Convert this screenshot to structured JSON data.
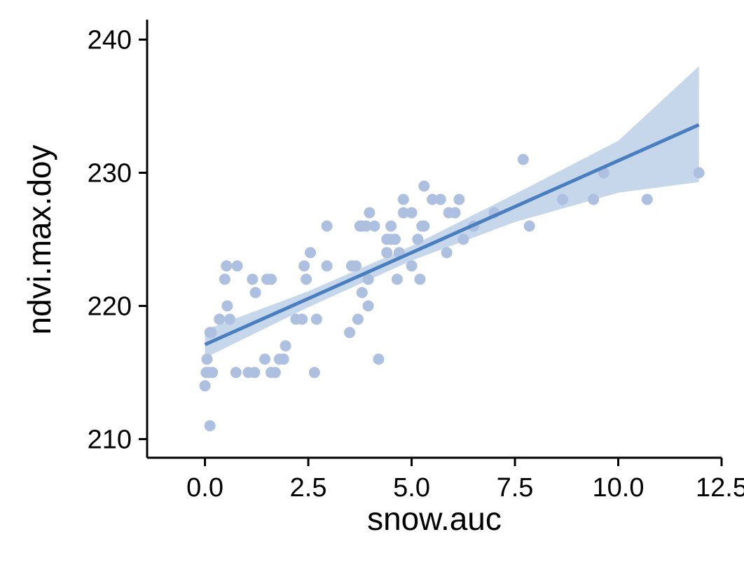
{
  "chart_data": {
    "type": "scatter",
    "title": "",
    "xlabel": "snow.auc",
    "ylabel": "ndvi.max.doy",
    "xlim": [
      -1.4,
      12.5
    ],
    "ylim": [
      208.6,
      241.5
    ],
    "x_ticks": [
      0,
      2.5,
      5,
      7.5,
      10,
      12.5
    ],
    "x_tick_labels": [
      "0.0",
      "2.5",
      "5.0",
      "7.5",
      "10.0",
      "12.5"
    ],
    "y_ticks": [
      210,
      220,
      230,
      240
    ],
    "y_tick_labels": [
      "210",
      "220",
      "230",
      "240"
    ],
    "grid": false,
    "legend": "none",
    "points": [
      {
        "x": 0.0,
        "y": 214
      },
      {
        "x": 0.03,
        "y": 215
      },
      {
        "x": 0.05,
        "y": 216
      },
      {
        "x": 0.1,
        "y": 215
      },
      {
        "x": 0.12,
        "y": 218
      },
      {
        "x": 0.15,
        "y": 218
      },
      {
        "x": 0.18,
        "y": 215
      },
      {
        "x": 0.12,
        "y": 211
      },
      {
        "x": 0.35,
        "y": 219
      },
      {
        "x": 0.48,
        "y": 222
      },
      {
        "x": 0.52,
        "y": 223
      },
      {
        "x": 0.54,
        "y": 220
      },
      {
        "x": 0.6,
        "y": 219
      },
      {
        "x": 0.75,
        "y": 215
      },
      {
        "x": 0.78,
        "y": 223
      },
      {
        "x": 1.05,
        "y": 215
      },
      {
        "x": 1.15,
        "y": 222
      },
      {
        "x": 1.2,
        "y": 215
      },
      {
        "x": 1.22,
        "y": 221
      },
      {
        "x": 1.45,
        "y": 216
      },
      {
        "x": 1.5,
        "y": 222
      },
      {
        "x": 1.6,
        "y": 222
      },
      {
        "x": 1.6,
        "y": 215
      },
      {
        "x": 1.7,
        "y": 215
      },
      {
        "x": 1.8,
        "y": 216
      },
      {
        "x": 1.9,
        "y": 216
      },
      {
        "x": 1.95,
        "y": 217
      },
      {
        "x": 2.2,
        "y": 219
      },
      {
        "x": 2.35,
        "y": 219
      },
      {
        "x": 2.4,
        "y": 223
      },
      {
        "x": 2.45,
        "y": 222
      },
      {
        "x": 2.55,
        "y": 224
      },
      {
        "x": 2.65,
        "y": 215
      },
      {
        "x": 2.7,
        "y": 219
      },
      {
        "x": 2.95,
        "y": 223
      },
      {
        "x": 2.95,
        "y": 226
      },
      {
        "x": 3.5,
        "y": 218
      },
      {
        "x": 3.55,
        "y": 223
      },
      {
        "x": 3.65,
        "y": 223
      },
      {
        "x": 3.7,
        "y": 219
      },
      {
        "x": 3.75,
        "y": 226
      },
      {
        "x": 3.8,
        "y": 221
      },
      {
        "x": 3.8,
        "y": 226
      },
      {
        "x": 3.9,
        "y": 226
      },
      {
        "x": 3.95,
        "y": 222
      },
      {
        "x": 3.95,
        "y": 220
      },
      {
        "x": 3.98,
        "y": 227
      },
      {
        "x": 4.1,
        "y": 226
      },
      {
        "x": 4.2,
        "y": 216
      },
      {
        "x": 4.4,
        "y": 224
      },
      {
        "x": 4.4,
        "y": 225
      },
      {
        "x": 4.5,
        "y": 225
      },
      {
        "x": 4.5,
        "y": 226
      },
      {
        "x": 4.6,
        "y": 225
      },
      {
        "x": 4.65,
        "y": 222
      },
      {
        "x": 4.7,
        "y": 224
      },
      {
        "x": 4.8,
        "y": 227
      },
      {
        "x": 4.8,
        "y": 228
      },
      {
        "x": 5.0,
        "y": 227
      },
      {
        "x": 5.0,
        "y": 223
      },
      {
        "x": 5.15,
        "y": 225
      },
      {
        "x": 5.2,
        "y": 222
      },
      {
        "x": 5.25,
        "y": 226
      },
      {
        "x": 5.3,
        "y": 226
      },
      {
        "x": 5.3,
        "y": 229
      },
      {
        "x": 5.5,
        "y": 228
      },
      {
        "x": 5.7,
        "y": 228
      },
      {
        "x": 5.85,
        "y": 224
      },
      {
        "x": 5.9,
        "y": 227
      },
      {
        "x": 6.05,
        "y": 227
      },
      {
        "x": 6.05,
        "y": 227
      },
      {
        "x": 6.15,
        "y": 228
      },
      {
        "x": 6.25,
        "y": 225
      },
      {
        "x": 6.5,
        "y": 226
      },
      {
        "x": 7.0,
        "y": 227
      },
      {
        "x": 7.7,
        "y": 231
      },
      {
        "x": 7.85,
        "y": 226
      },
      {
        "x": 8.65,
        "y": 228
      },
      {
        "x": 9.4,
        "y": 228
      },
      {
        "x": 9.65,
        "y": 230
      },
      {
        "x": 10.7,
        "y": 228
      },
      {
        "x": 11.95,
        "y": 230
      }
    ],
    "fit_line": {
      "x": [
        0.0,
        11.95
      ],
      "y": [
        217.1,
        233.6
      ]
    },
    "confidence_band": {
      "x": [
        0.0,
        2.5,
        5.0,
        7.5,
        10.0,
        11.95
      ],
      "lower": [
        216.1,
        219.9,
        223.4,
        226.3,
        228.5,
        229.3
      ],
      "upper": [
        218.2,
        221.1,
        224.5,
        228.4,
        232.4,
        238.0
      ]
    },
    "colors": {
      "points": "#aec0e0",
      "line": "#4a7fbf",
      "band": "#c6d7ec",
      "axis": "#000000"
    }
  }
}
